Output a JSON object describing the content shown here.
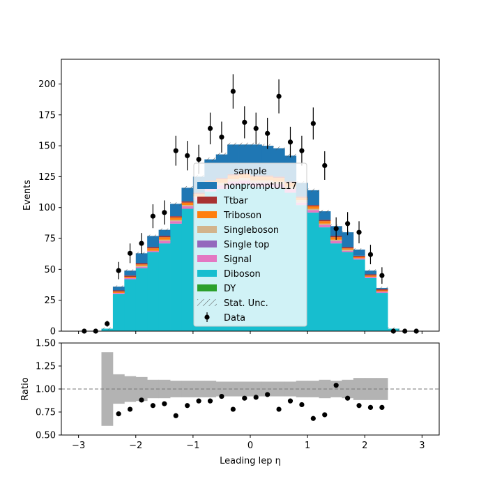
{
  "chart_data": [
    {
      "type": "bar",
      "stacked": true,
      "ylabel": "Events",
      "xlim": [
        -3.3,
        3.3
      ],
      "ylim": [
        0,
        220
      ],
      "xticks": [
        -3,
        -2,
        -1,
        0,
        1,
        2,
        3
      ],
      "yticks": [
        0,
        25,
        50,
        75,
        100,
        125,
        150,
        175,
        200
      ],
      "grid": false,
      "legend": {
        "title": "sample",
        "placement": "center",
        "entries": [
          "nonpromptUL17",
          "Ttbar",
          "Triboson",
          "Singleboson",
          "Single top",
          "Signal",
          "Diboson",
          "DY",
          "Stat. Unc.",
          "Data"
        ]
      },
      "bin_edges": [
        -3.0,
        -2.8,
        -2.6,
        -2.4,
        -2.2,
        -2.0,
        -1.8,
        -1.6,
        -1.4,
        -1.2,
        -1.0,
        -0.8,
        -0.6,
        -0.4,
        -0.2,
        0.0,
        0.2,
        0.4,
        0.6,
        0.8,
        1.0,
        1.2,
        1.4,
        1.6,
        1.8,
        2.0,
        2.2,
        2.4,
        2.6,
        2.8,
        3.0
      ],
      "series": [
        {
          "name": "DY",
          "color": "#2ca02c",
          "values": [
            0,
            0,
            0,
            0,
            0,
            0,
            0,
            0,
            0,
            0,
            0,
            0,
            0,
            0,
            0,
            0,
            0,
            0,
            0,
            0,
            0,
            0,
            0,
            0,
            0,
            0,
            0,
            0,
            0,
            0
          ]
        },
        {
          "name": "Diboson",
          "color": "#17becf",
          "values": [
            0,
            0,
            2,
            30,
            42,
            51,
            64,
            71,
            87,
            99,
            106,
            113,
            115,
            118,
            119,
            117,
            117,
            116,
            112,
            102,
            96,
            84,
            71,
            64,
            58,
            43,
            31,
            2,
            0,
            0
          ]
        },
        {
          "name": "Signal",
          "color": "#e377c2",
          "values": [
            0,
            0,
            0,
            1,
            1,
            1,
            1,
            2,
            2,
            2,
            2,
            3,
            3,
            3,
            3,
            3,
            3,
            3,
            3,
            2,
            2,
            2,
            2,
            1,
            1,
            1,
            1,
            0,
            0,
            0
          ]
        },
        {
          "name": "Single top",
          "color": "#9467bd",
          "values": [
            0,
            0,
            0,
            0,
            0,
            0,
            0,
            0,
            0,
            0,
            0,
            0,
            0,
            0,
            0,
            0,
            0,
            0,
            0,
            0,
            0,
            0,
            0,
            0,
            0,
            0,
            0,
            0,
            0,
            0
          ]
        },
        {
          "name": "Singleboson",
          "color": "#d2b48c",
          "values": [
            0,
            0,
            0,
            0,
            0,
            1,
            0,
            1,
            1,
            1,
            1,
            2,
            2,
            2,
            2,
            2,
            2,
            2,
            2,
            2,
            1,
            1,
            1,
            1,
            0,
            0,
            0,
            0,
            0,
            0
          ]
        },
        {
          "name": "Triboson",
          "color": "#ff7f0e",
          "values": [
            0,
            0,
            0,
            1,
            1,
            1,
            2,
            2,
            2,
            2,
            2,
            3,
            3,
            3,
            3,
            3,
            3,
            3,
            3,
            2,
            2,
            2,
            2,
            1,
            1,
            1,
            1,
            0,
            0,
            0
          ]
        },
        {
          "name": "Ttbar",
          "color": "#a83232",
          "values": [
            0,
            0,
            0,
            1,
            1,
            1,
            1,
            1,
            1,
            1,
            1,
            1,
            1,
            1,
            1,
            1,
            1,
            1,
            1,
            1,
            1,
            1,
            1,
            1,
            1,
            1,
            1,
            0,
            0,
            0
          ]
        },
        {
          "name": "nonpromptUL17",
          "color": "#1f77b4",
          "values": [
            0,
            0,
            0,
            3,
            4,
            8,
            9,
            5,
            10,
            11,
            13,
            17,
            19,
            24,
            23,
            25,
            24,
            23,
            21,
            11,
            12,
            7,
            8,
            12,
            5,
            3,
            1,
            0,
            0,
            0
          ]
        }
      ],
      "data_points": {
        "name": "Data",
        "x": [
          -2.9,
          -2.7,
          -2.5,
          -2.3,
          -2.1,
          -1.9,
          -1.7,
          -1.5,
          -1.3,
          -1.1,
          -0.9,
          -0.7,
          -0.5,
          -0.3,
          -0.1,
          0.1,
          0.3,
          0.5,
          0.7,
          0.9,
          1.1,
          1.3,
          1.5,
          1.7,
          1.9,
          2.1,
          2.3,
          2.5,
          2.7,
          2.9
        ],
        "y": [
          0,
          0,
          6,
          49,
          63,
          71,
          93,
          96,
          146,
          142,
          139,
          164,
          157,
          194,
          169,
          164,
          160,
          190,
          153,
          146,
          168,
          134,
          83,
          87,
          80,
          62,
          45,
          0,
          0,
          0
        ]
      }
    },
    {
      "type": "scatter",
      "xlabel": "Leading lep η",
      "ylabel": "Ratio",
      "xlim": [
        -3.3,
        3.3
      ],
      "ylim": [
        0.5,
        1.5
      ],
      "xticks": [
        -3,
        -2,
        -1,
        0,
        1,
        2,
        3
      ],
      "yticks": [
        0.5,
        0.75,
        1.0,
        1.25,
        1.5
      ],
      "ytick_labels": [
        "0.50",
        "0.75",
        "1.00",
        "1.25",
        "1.50"
      ],
      "reference_line": 1.0,
      "unc_band": [
        0.4,
        0.16,
        0.14,
        0.13,
        0.1,
        0.1,
        0.09,
        0.09,
        0.09,
        0.09,
        0.08,
        0.08,
        0.08,
        0.08,
        0.08,
        0.08,
        0.08,
        0.09,
        0.09,
        0.1,
        0.09,
        0.1,
        0.12,
        0.12,
        0.12
      ],
      "x": [
        -2.3,
        -2.1,
        -1.9,
        -1.7,
        -1.5,
        -1.3,
        -1.1,
        -0.9,
        -0.7,
        -0.5,
        -0.3,
        -0.1,
        0.1,
        0.3,
        0.5,
        0.7,
        0.9,
        1.1,
        1.3,
        1.5,
        1.7,
        1.9,
        2.1,
        2.3
      ],
      "y": [
        0.73,
        0.78,
        0.88,
        0.82,
        0.84,
        0.71,
        0.82,
        0.87,
        0.87,
        0.92,
        0.78,
        0.9,
        0.91,
        0.94,
        0.78,
        0.87,
        0.83,
        0.68,
        0.72,
        1.04,
        0.9,
        0.82,
        0.8,
        0.8
      ]
    }
  ]
}
